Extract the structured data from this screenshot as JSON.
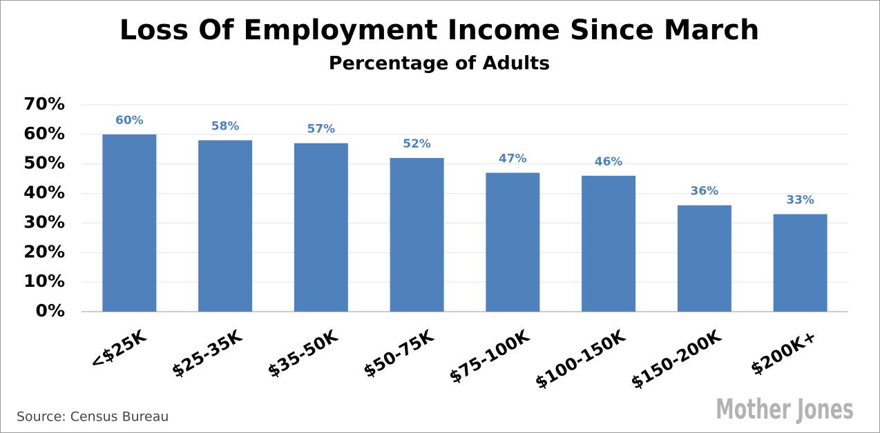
{
  "chart_data": {
    "type": "bar",
    "title": "Loss Of Employment Income Since March",
    "subtitle": "Percentage of Adults",
    "categories": [
      "<$25K",
      "$25-35K",
      "$35-50K",
      "$50-75K",
      "$75-100K",
      "$100-150K",
      "$150-200K",
      "$200K+"
    ],
    "values": [
      60,
      58,
      57,
      52,
      47,
      46,
      36,
      33
    ],
    "value_labels": [
      "60%",
      "58%",
      "57%",
      "52%",
      "47%",
      "46%",
      "36%",
      "33%"
    ],
    "color": "#4f81bd",
    "ylim": [
      0,
      70
    ],
    "yticks": [
      {
        "value": 0,
        "label": "0%"
      },
      {
        "value": 10,
        "label": "10%"
      },
      {
        "value": 20,
        "label": "20%"
      },
      {
        "value": 30,
        "label": "30%"
      },
      {
        "value": 40,
        "label": "40%"
      },
      {
        "value": 50,
        "label": "50%"
      },
      {
        "value": 60,
        "label": "60%"
      },
      {
        "value": 70,
        "label": "70%"
      }
    ],
    "grid": true,
    "source": "Source: Census Bureau",
    "logo": "Mother Jones"
  }
}
